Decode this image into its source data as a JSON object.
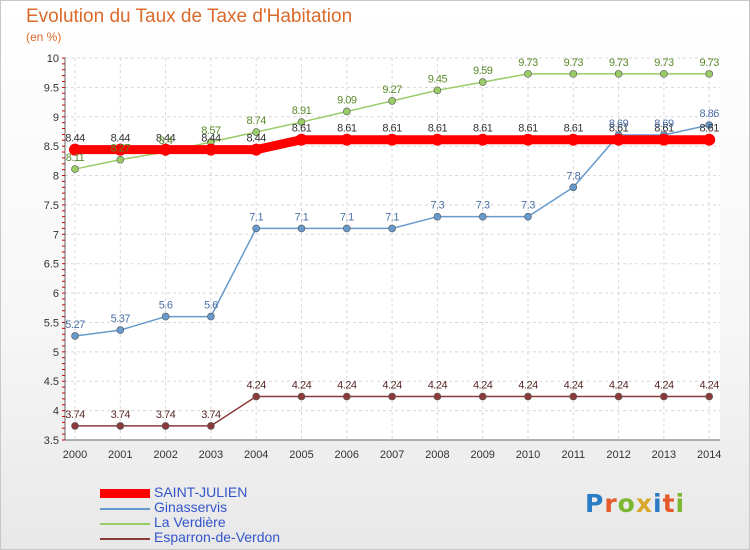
{
  "header": {
    "title": "Evolution du Taux de Taxe d'Habitation",
    "subtitle": "(en %)"
  },
  "logo": {
    "text": "Proxiti",
    "letter_colors": [
      "#2a7cc7",
      "#e55a2b",
      "#7cb82f",
      "#d9a72a",
      "#2a7cc7",
      "#e55a2b",
      "#7cb82f"
    ]
  },
  "chart_data": {
    "type": "line",
    "x": [
      "2000",
      "2001",
      "2002",
      "2003",
      "2004",
      "2005",
      "2006",
      "2007",
      "2008",
      "2009",
      "2010",
      "2011",
      "2012",
      "2013",
      "2014"
    ],
    "ylim": [
      3.5,
      10
    ],
    "yticks": [
      "3.5",
      "4",
      "4.5",
      "5",
      "5.5",
      "6",
      "6.5",
      "7",
      "7.5",
      "8",
      "8.5",
      "9",
      "9.5",
      "10"
    ],
    "grid": true,
    "legend_position": "bottom-left",
    "series": [
      {
        "name": "SAINT-JULIEN",
        "color": "#ff0000",
        "label_color": "#333333",
        "values": [
          8.44,
          8.44,
          8.44,
          8.44,
          8.44,
          8.61,
          8.61,
          8.61,
          8.61,
          8.61,
          8.61,
          8.61,
          8.61,
          8.61,
          8.61
        ],
        "labels": [
          "8.44",
          "8.44",
          "8.44",
          "8.44",
          "8.44",
          "8.61",
          "8.61",
          "8.61",
          "8.61",
          "8.61",
          "8.61",
          "8.61",
          "8.61",
          "8.61",
          "8.61"
        ]
      },
      {
        "name": "Ginasservis",
        "color": "#6699cc",
        "label_color": "#4a6fa5",
        "values": [
          5.27,
          5.37,
          5.6,
          5.6,
          7.1,
          7.1,
          7.1,
          7.1,
          7.3,
          7.3,
          7.3,
          7.8,
          8.69,
          8.69,
          8.86
        ],
        "labels": [
          "5.27",
          "5.37",
          "5.6",
          "5.6",
          "7.1",
          "7.1",
          "7.1",
          "7.1",
          "7.3",
          "7.3",
          "7.3",
          "7.8",
          "8.69",
          "8.69",
          "8.86"
        ]
      },
      {
        "name": "La Verdière",
        "color": "#99cc66",
        "label_color": "#5a8a2a",
        "values": [
          8.11,
          8.27,
          8.4,
          8.57,
          8.74,
          8.91,
          9.09,
          9.27,
          9.45,
          9.59,
          9.73,
          9.73,
          9.73,
          9.73,
          9.73
        ],
        "labels": [
          "8.11",
          "8.27",
          "8.4",
          "8.57",
          "8.74",
          "8.91",
          "9.09",
          "9.27",
          "9.45",
          "9.59",
          "9.73",
          "9.73",
          "9.73",
          "9.73",
          "9.73"
        ]
      },
      {
        "name": "Esparron-de-Verdon",
        "color": "#8b3a3a",
        "label_color": "#5a2a2a",
        "values": [
          3.74,
          3.74,
          3.74,
          3.74,
          4.24,
          4.24,
          4.24,
          4.24,
          4.24,
          4.24,
          4.24,
          4.24,
          4.24,
          4.24,
          4.24
        ],
        "labels": [
          "3.74",
          "3.74",
          "3.74",
          "3.74",
          "4.24",
          "4.24",
          "4.24",
          "4.24",
          "4.24",
          "4.24",
          "4.24",
          "4.24",
          "4.24",
          "4.24",
          "4.24"
        ]
      }
    ]
  }
}
